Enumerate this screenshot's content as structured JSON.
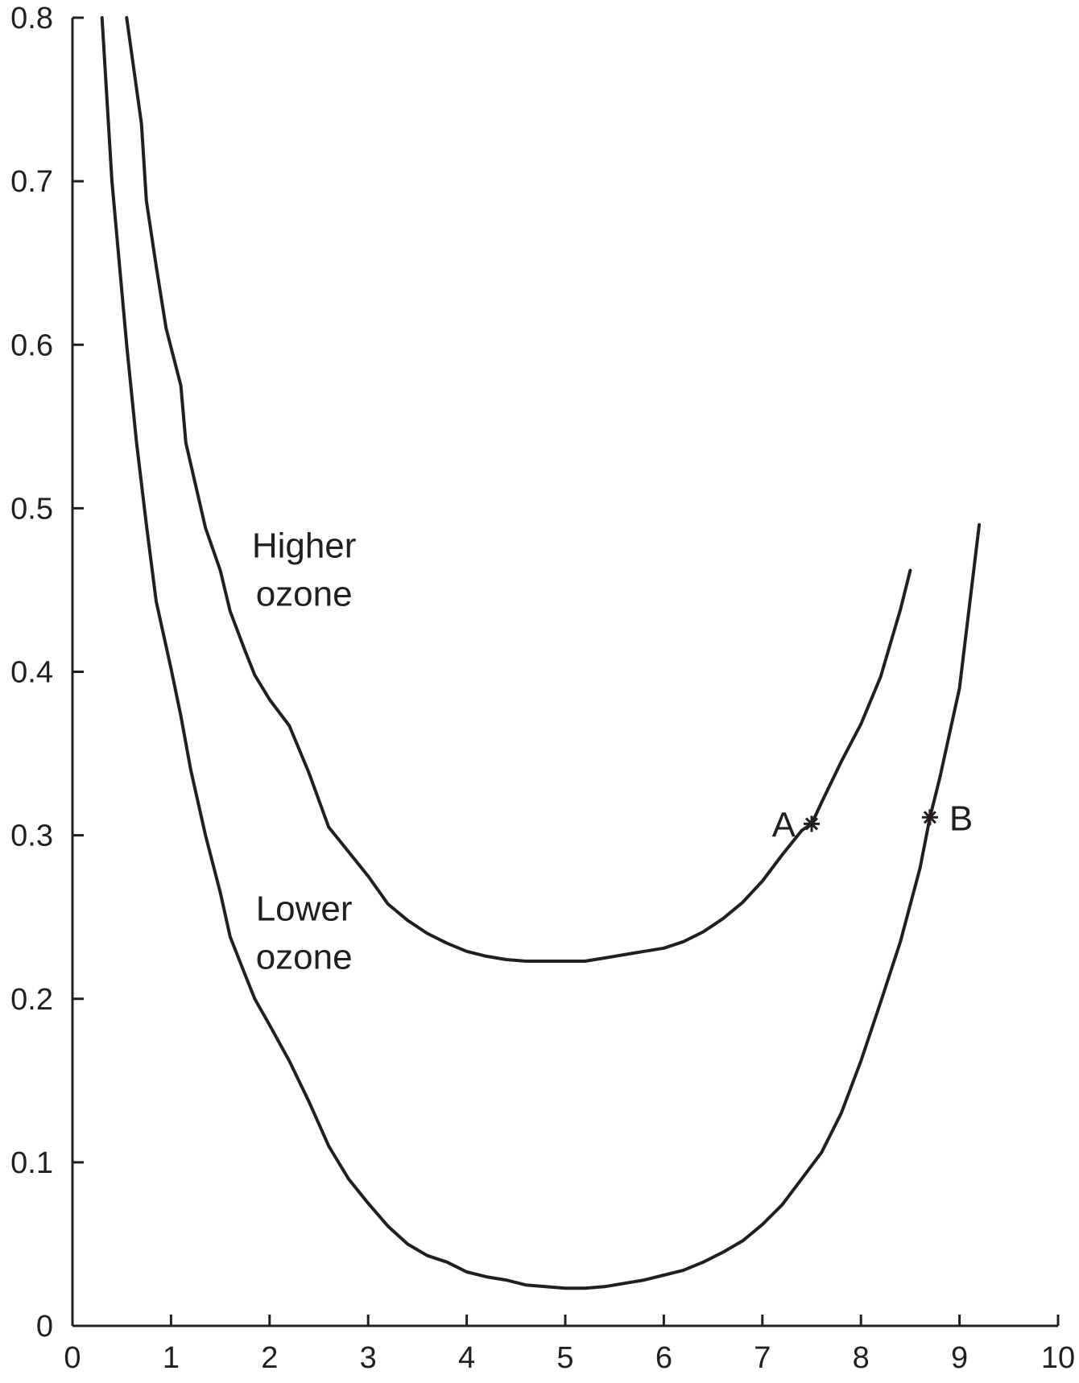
{
  "chart_data": {
    "type": "line",
    "title": "",
    "xlabel": "",
    "ylabel": "",
    "xlim": [
      0,
      10
    ],
    "ylim": [
      0,
      0.8
    ],
    "x_ticks": [
      0,
      1,
      2,
      3,
      4,
      5,
      6,
      7,
      8,
      9,
      10
    ],
    "y_ticks": [
      0,
      0.1,
      0.2,
      0.3,
      0.4,
      0.5,
      0.6,
      0.7,
      0.8
    ],
    "x_tick_labels": [
      "0",
      "1",
      "2",
      "3",
      "4",
      "5",
      "6",
      "7",
      "8",
      "9",
      "10"
    ],
    "y_tick_labels": [
      "0",
      "0.1",
      "0.2",
      "0.3",
      "0.4",
      "0.5",
      "0.6",
      "0.7",
      "0.8"
    ],
    "grid": false,
    "series": [
      {
        "name": "Higher ozone",
        "x": [
          0.55,
          0.7,
          0.75,
          0.85,
          0.95,
          1.1,
          1.15,
          1.35,
          1.5,
          1.6,
          1.75,
          1.85,
          2.0,
          2.2,
          2.4,
          2.6,
          2.8,
          3.0,
          3.2,
          3.4,
          3.6,
          3.8,
          4.0,
          4.2,
          4.4,
          4.6,
          4.8,
          5.0,
          5.2,
          5.4,
          5.6,
          5.8,
          6.0,
          6.2,
          6.4,
          6.6,
          6.8,
          7.0,
          7.2,
          7.4,
          7.5,
          7.6,
          7.8,
          8.0,
          8.2,
          8.4,
          8.5
        ],
        "y": [
          0.8,
          0.735,
          0.688,
          0.648,
          0.61,
          0.575,
          0.54,
          0.488,
          0.462,
          0.437,
          0.413,
          0.398,
          0.383,
          0.367,
          0.338,
          0.305,
          0.29,
          0.275,
          0.258,
          0.248,
          0.24,
          0.234,
          0.229,
          0.226,
          0.224,
          0.223,
          0.223,
          0.223,
          0.223,
          0.225,
          0.227,
          0.229,
          0.231,
          0.235,
          0.241,
          0.249,
          0.259,
          0.272,
          0.288,
          0.303,
          0.307,
          0.32,
          0.345,
          0.368,
          0.397,
          0.438,
          0.462
        ]
      },
      {
        "name": "Lower ozone",
        "x": [
          0.3,
          0.4,
          0.55,
          0.65,
          0.75,
          0.85,
          1.0,
          1.1,
          1.2,
          1.35,
          1.5,
          1.6,
          1.75,
          1.85,
          2.0,
          2.2,
          2.4,
          2.6,
          2.8,
          3.0,
          3.2,
          3.4,
          3.6,
          3.8,
          4.0,
          4.2,
          4.4,
          4.6,
          4.8,
          5.0,
          5.2,
          5.4,
          5.6,
          5.8,
          6.0,
          6.2,
          6.4,
          6.6,
          6.8,
          7.0,
          7.2,
          7.4,
          7.6,
          7.8,
          8.0,
          8.2,
          8.4,
          8.6,
          8.7,
          8.8,
          9.0,
          9.2
        ],
        "y": [
          0.8,
          0.7,
          0.6,
          0.54,
          0.49,
          0.443,
          0.402,
          0.373,
          0.34,
          0.3,
          0.265,
          0.238,
          0.215,
          0.2,
          0.184,
          0.162,
          0.137,
          0.11,
          0.09,
          0.075,
          0.061,
          0.05,
          0.043,
          0.039,
          0.033,
          0.03,
          0.028,
          0.025,
          0.024,
          0.023,
          0.023,
          0.024,
          0.026,
          0.028,
          0.031,
          0.034,
          0.039,
          0.045,
          0.052,
          0.062,
          0.074,
          0.09,
          0.106,
          0.13,
          0.162,
          0.198,
          0.235,
          0.28,
          0.311,
          0.335,
          0.39,
          0.49
        ]
      }
    ],
    "annotations": [
      {
        "text_lines": [
          "Higher",
          "ozone"
        ],
        "x": 2.35,
        "y": 0.47
      },
      {
        "text_lines": [
          "Lower",
          "ozone"
        ],
        "x": 2.35,
        "y": 0.248
      }
    ],
    "points": [
      {
        "label": "A",
        "x": 7.5,
        "y": 0.307,
        "label_side": "left"
      },
      {
        "label": "B",
        "x": 8.7,
        "y": 0.311,
        "label_side": "right"
      }
    ]
  }
}
